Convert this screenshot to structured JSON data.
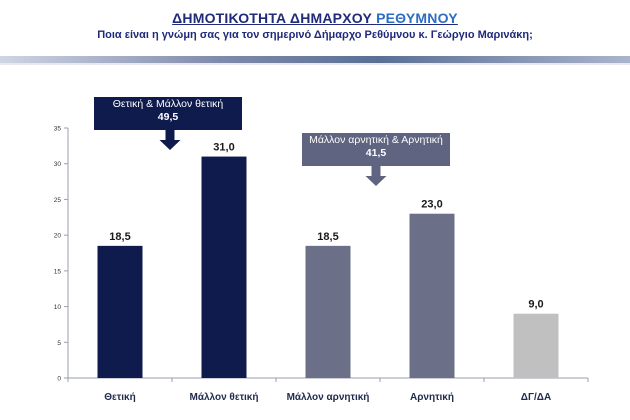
{
  "header": {
    "title_main": "ΔΗΜΟΤΙΚΟΤΗΤΑ ΔΗΜΑΡΧΟΥ ",
    "title_highlight": "ΡΕΘΥΜΝΟΥ",
    "subtitle": "Ποια είναι η γνώμη σας για τον σημερινό Δήμαρχο Ρεθύμνου κ. Γεώργιο Μαρινάκη;"
  },
  "callouts": {
    "positive": {
      "label": "Θετική & Μάλλον θετική",
      "value": "49,5"
    },
    "negative": {
      "label": "Μάλλον αρνητική & Αρνητική",
      "value": "41,5"
    }
  },
  "colors": {
    "navy": "#0f1b4d",
    "slate": "#6b6f87",
    "grey": "#c0c0c0",
    "callout_navy": "#0f1b4d",
    "callout_slate": "#5f6480"
  },
  "chart_data": {
    "type": "bar",
    "categories": [
      "Θετική",
      "Μάλλον θετική",
      "Μάλλον αρνητική",
      "Αρνητική",
      "ΔΓ/ΔΑ"
    ],
    "values": [
      18.5,
      31.0,
      18.5,
      23.0,
      9.0
    ],
    "value_labels": [
      "18,5",
      "31,0",
      "18,5",
      "23,0",
      "9,0"
    ],
    "bar_colors": [
      "#0f1b4d",
      "#0f1b4d",
      "#6b6f87",
      "#6b6f87",
      "#c0c0c0"
    ],
    "ylim": [
      0,
      35
    ],
    "yticks": [
      0,
      5,
      10,
      15,
      20,
      25,
      30,
      35
    ],
    "grid": false,
    "legend": "none"
  }
}
